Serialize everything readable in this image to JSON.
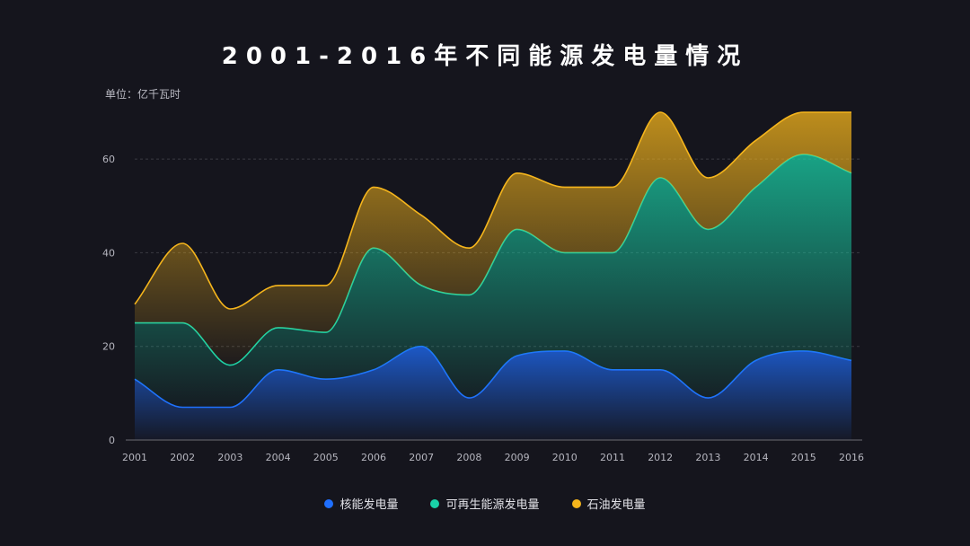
{
  "title": "2001-2016年不同能源发电量情况",
  "unit": "单位：亿千瓦时",
  "colors": {
    "background": "#15151d",
    "grid": "#3a3a42",
    "axis": "#6b6b73"
  },
  "chart_data": {
    "type": "area",
    "stacked": true,
    "curve": "smooth",
    "x": [
      "2001",
      "2002",
      "2003",
      "2004",
      "2005",
      "2006",
      "2007",
      "2008",
      "2009",
      "2010",
      "2011",
      "2012",
      "2013",
      "2014",
      "2015",
      "2016"
    ],
    "ylim": [
      0,
      70
    ],
    "yticks": [
      0,
      20,
      40,
      60
    ],
    "grid": "horizontal-dashed",
    "legend": "bottom",
    "series": [
      {
        "name": "核能发电量",
        "color": "#1f6fff",
        "values": [
          13,
          7,
          7,
          15,
          13,
          15,
          20,
          9,
          18,
          19,
          15,
          15,
          9,
          17,
          19,
          17
        ]
      },
      {
        "name": "可再生能源发电量",
        "color": "#19d2a8",
        "values": [
          12,
          18,
          9,
          9,
          10,
          26,
          13,
          22,
          27,
          21,
          25,
          41,
          36,
          37,
          42,
          40
        ]
      },
      {
        "name": "石油发电量",
        "color": "#f5b51c",
        "values": [
          4,
          17,
          12,
          9,
          10,
          13,
          15,
          10,
          12,
          14,
          14,
          14,
          11,
          10,
          9,
          13
        ]
      }
    ]
  }
}
